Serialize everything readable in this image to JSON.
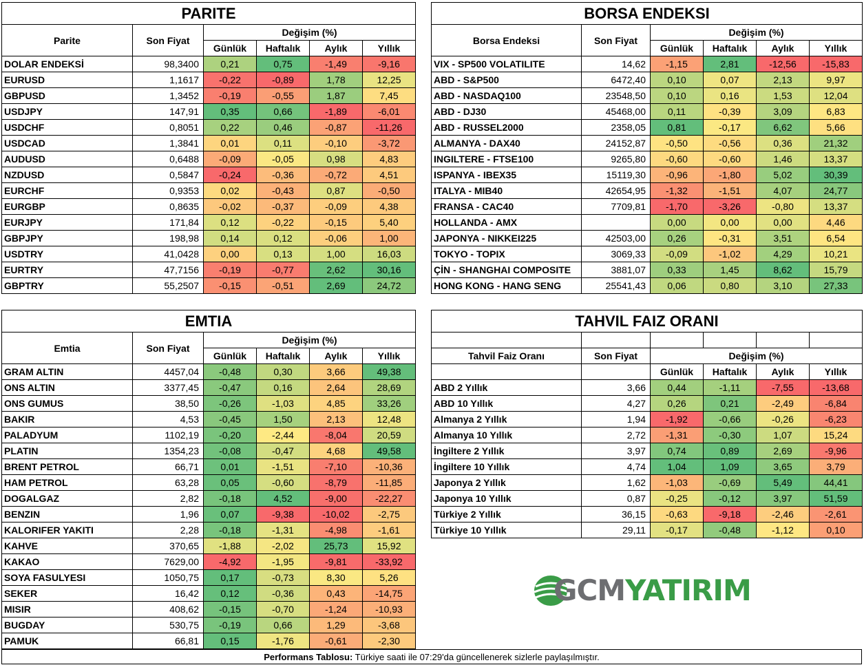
{
  "parite": {
    "title": "PARITE",
    "col_name": "Parite",
    "col_price": "Son Fiyat",
    "col_change": "Değişim (%)",
    "periods": [
      "Günlük",
      "Haftalık",
      "Aylık",
      "Yıllık"
    ],
    "rows": [
      {
        "name": "DOLAR ENDEKSİ",
        "price": "98,3400",
        "vals": [
          "0,21",
          "0,75",
          "-1,49",
          "-9,16"
        ]
      },
      {
        "name": "EURUSD",
        "price": "1,1617",
        "vals": [
          "-0,22",
          "-0,89",
          "1,78",
          "12,25"
        ]
      },
      {
        "name": "GBPUSD",
        "price": "1,3452",
        "vals": [
          "-0,19",
          "-0,55",
          "1,87",
          "7,45"
        ]
      },
      {
        "name": "USDJPY",
        "price": "147,91",
        "vals": [
          "0,35",
          "0,66",
          "-1,89",
          "-6,01"
        ]
      },
      {
        "name": "USDCHF",
        "price": "0,8051",
        "vals": [
          "0,22",
          "0,46",
          "-0,87",
          "-11,26"
        ]
      },
      {
        "name": "USDCAD",
        "price": "1,3841",
        "vals": [
          "0,01",
          "0,11",
          "-0,10",
          "-3,72"
        ]
      },
      {
        "name": "AUDUSD",
        "price": "0,6488",
        "vals": [
          "-0,09",
          "-0,05",
          "0,98",
          "4,83"
        ]
      },
      {
        "name": "NZDUSD",
        "price": "0,5847",
        "vals": [
          "-0,24",
          "-0,36",
          "-0,72",
          "4,51"
        ]
      },
      {
        "name": "EURCHF",
        "price": "0,9353",
        "vals": [
          "0,02",
          "-0,43",
          "0,87",
          "-0,50"
        ]
      },
      {
        "name": "EURGBP",
        "price": "0,8635",
        "vals": [
          "-0,02",
          "-0,37",
          "-0,09",
          "4,38"
        ]
      },
      {
        "name": "EURJPY",
        "price": "171,84",
        "vals": [
          "0,12",
          "-0,22",
          "-0,15",
          "5,40"
        ]
      },
      {
        "name": "GBPJPY",
        "price": "198,98",
        "vals": [
          "0,14",
          "0,12",
          "-0,06",
          "1,00"
        ]
      },
      {
        "name": "USDTRY",
        "price": "41,0428",
        "vals": [
          "0,00",
          "0,13",
          "1,00",
          "16,03"
        ]
      },
      {
        "name": "EURTRY",
        "price": "47,7156",
        "vals": [
          "-0,19",
          "-0,77",
          "2,62",
          "30,16"
        ]
      },
      {
        "name": "GBPTRY",
        "price": "55,2507",
        "vals": [
          "-0,15",
          "-0,51",
          "2,69",
          "24,72"
        ]
      }
    ]
  },
  "borsa": {
    "title": "BORSA ENDEKSI",
    "col_name": "Borsa Endeksi",
    "col_price": "Son Fiyat",
    "col_change": "Değişim (%)",
    "periods": [
      "Günlük",
      "Haftalık",
      "Aylık",
      "Yıllık"
    ],
    "rows": [
      {
        "name": "VIX  - SP500 VOLATILITE",
        "price": "14,62",
        "vals": [
          "-1,15",
          "2,81",
          "-12,56",
          "-15,83"
        ]
      },
      {
        "name": "ABD - S&P500",
        "price": "6472,40",
        "vals": [
          "0,10",
          "0,07",
          "2,13",
          "9,97"
        ]
      },
      {
        "name": "ABD - NASDAQ100",
        "price": "23548,50",
        "vals": [
          "0,10",
          "0,16",
          "1,53",
          "12,04"
        ]
      },
      {
        "name": "ABD - DJ30",
        "price": "45468,00",
        "vals": [
          "0,11",
          "-0,39",
          "3,09",
          "6,83"
        ]
      },
      {
        "name": "ABD - RUSSEL2000",
        "price": "2358,05",
        "vals": [
          "0,81",
          "-0,17",
          "6,62",
          "5,66"
        ]
      },
      {
        "name": "ALMANYA - DAX40",
        "price": "24152,87",
        "vals": [
          "-0,50",
          "-0,56",
          "0,36",
          "21,32"
        ]
      },
      {
        "name": "INGILTERE - FTSE100",
        "price": "9265,80",
        "vals": [
          "-0,60",
          "-0,60",
          "1,46",
          "13,37"
        ]
      },
      {
        "name": "ISPANYA - IBEX35",
        "price": "15119,30",
        "vals": [
          "-0,96",
          "-1,80",
          "5,02",
          "30,39"
        ]
      },
      {
        "name": "ITALYA - MIB40",
        "price": "42654,95",
        "vals": [
          "-1,32",
          "-1,51",
          "4,07",
          "24,77"
        ]
      },
      {
        "name": "FRANSA - CAC40",
        "price": "7709,81",
        "vals": [
          "-1,70",
          "-3,26",
          "-0,80",
          "13,37"
        ]
      },
      {
        "name": "HOLLANDA - AMX",
        "price": "",
        "vals": [
          "0,00",
          "0,00",
          "0,00",
          "4,46"
        ]
      },
      {
        "name": "JAPONYA - NIKKEI225",
        "price": "42503,00",
        "vals": [
          "0,26",
          "-0,31",
          "3,51",
          "6,54"
        ]
      },
      {
        "name": "TOKYO - TOPIX",
        "price": "3069,33",
        "vals": [
          "-0,09",
          "-1,02",
          "4,29",
          "10,21"
        ]
      },
      {
        "name": "ÇİN - SHANGHAI COMPOSITE",
        "price": "3881,07",
        "vals": [
          "0,33",
          "1,45",
          "8,62",
          "15,79"
        ]
      },
      {
        "name": "HONG KONG - HANG SENG",
        "price": "25541,43",
        "vals": [
          "0,06",
          "0,80",
          "3,10",
          "27,33"
        ]
      }
    ]
  },
  "emtia": {
    "title": "EMTIA",
    "col_name": "Emtia",
    "col_price": "Son Fiyat",
    "col_change": "Değişim (%)",
    "periods": [
      "Günlük",
      "Haftalık",
      "Aylık",
      "Yıllık"
    ],
    "rows": [
      {
        "name": "GRAM ALTIN",
        "price": "4457,04",
        "vals": [
          "-0,48",
          "0,30",
          "3,66",
          "49,38"
        ]
      },
      {
        "name": "ONS ALTIN",
        "price": "3377,45",
        "vals": [
          "-0,47",
          "0,16",
          "2,64",
          "28,69"
        ]
      },
      {
        "name": "ONS GUMUS",
        "price": "38,50",
        "vals": [
          "-0,26",
          "-1,03",
          "4,85",
          "33,26"
        ]
      },
      {
        "name": "BAKIR",
        "price": "4,53",
        "vals": [
          "-0,45",
          "1,50",
          "2,13",
          "12,48"
        ]
      },
      {
        "name": "PALADYUM",
        "price": "1102,19",
        "vals": [
          "-0,20",
          "-2,44",
          "-8,04",
          "20,59"
        ]
      },
      {
        "name": "PLATIN",
        "price": "1354,23",
        "vals": [
          "-0,08",
          "-0,47",
          "4,68",
          "49,58"
        ]
      },
      {
        "name": "BRENT PETROL",
        "price": "66,71",
        "vals": [
          "0,01",
          "-1,51",
          "-7,10",
          "-10,36"
        ]
      },
      {
        "name": "HAM PETROL",
        "price": "63,28",
        "vals": [
          "0,05",
          "-0,60",
          "-8,79",
          "-11,85"
        ]
      },
      {
        "name": "DOGALGAZ",
        "price": "2,82",
        "vals": [
          "-0,18",
          "4,52",
          "-9,00",
          "-22,27"
        ]
      },
      {
        "name": "BENZIN",
        "price": "1,96",
        "vals": [
          "0,07",
          "-9,38",
          "-10,02",
          "-2,75"
        ]
      },
      {
        "name": "KALORIFER YAKITI",
        "price": "2,28",
        "vals": [
          "-0,18",
          "-1,31",
          "-4,98",
          "-1,61"
        ]
      },
      {
        "name": "KAHVE",
        "price": "370,65",
        "vals": [
          "-1,88",
          "-2,02",
          "25,73",
          "15,92"
        ]
      },
      {
        "name": "KAKAO",
        "price": "7629,00",
        "vals": [
          "-4,92",
          "-1,95",
          "-9,81",
          "-33,92"
        ]
      },
      {
        "name": "SOYA FASULYESI",
        "price": "1050,75",
        "vals": [
          "0,17",
          "-0,73",
          "8,30",
          "5,26"
        ]
      },
      {
        "name": "SEKER",
        "price": "16,42",
        "vals": [
          "0,12",
          "-0,36",
          "0,43",
          "-14,75"
        ]
      },
      {
        "name": "MISIR",
        "price": "408,62",
        "vals": [
          "-0,15",
          "-0,70",
          "-1,24",
          "-10,93"
        ]
      },
      {
        "name": "BUGDAY",
        "price": "530,75",
        "vals": [
          "-0,19",
          "0,66",
          "1,29",
          "-3,68"
        ]
      },
      {
        "name": "PAMUK",
        "price": "66,81",
        "vals": [
          "0,15",
          "-1,76",
          "-0,61",
          "-2,30"
        ]
      }
    ]
  },
  "tahvil": {
    "title": "TAHVIL FAIZ ORANI",
    "col_name": "Tahvil Faiz Oranı",
    "col_price": "Son Fiyat",
    "col_change": "Değişim (%)",
    "periods": [
      "Günlük",
      "Haftalık",
      "Aylık",
      "Yıllık"
    ],
    "rows": [
      {
        "name": "ABD 2 Yıllık",
        "price": "3,66",
        "vals": [
          "0,44",
          "-1,11",
          "-7,55",
          "-13,68"
        ]
      },
      {
        "name": "ABD 10 Yıllık",
        "price": "4,27",
        "vals": [
          "0,26",
          "0,21",
          "-2,49",
          "-6,84"
        ]
      },
      {
        "name": "Almanya 2 Yıllık",
        "price": "1,94",
        "vals": [
          "-1,92",
          "-0,66",
          "-0,26",
          "-6,23"
        ]
      },
      {
        "name": "Almanya 10 Yıllık",
        "price": "2,72",
        "vals": [
          "-1,31",
          "-0,30",
          "1,07",
          "15,24"
        ]
      },
      {
        "name": "İngiltere 2 Yıllık",
        "price": "3,97",
        "vals": [
          "0,74",
          "0,89",
          "2,69",
          "-9,96"
        ]
      },
      {
        "name": "İngiltere 10 Yıllık",
        "price": "4,74",
        "vals": [
          "1,04",
          "1,09",
          "3,65",
          "3,79"
        ]
      },
      {
        "name": "Japonya 2 Yıllık",
        "price": "1,62",
        "vals": [
          "-1,03",
          "-0,69",
          "5,49",
          "44,41"
        ]
      },
      {
        "name": "Japonya 10 Yıllık",
        "price": "0,87",
        "vals": [
          "-0,25",
          "-0,12",
          "3,97",
          "51,59"
        ]
      },
      {
        "name": "Türkiye 2 Yıllık",
        "price": "36,15",
        "vals": [
          "-0,63",
          "-9,18",
          "-2,46",
          "-2,61"
        ]
      },
      {
        "name": "Türkiye 10 Yıllık",
        "price": "29,11",
        "vals": [
          "-0,17",
          "-0,48",
          "-1,12",
          "0,10"
        ]
      }
    ]
  },
  "logo": {
    "part1": "GCM",
    "part2": "YATIRIM",
    "color_green": "#3a9c47",
    "color_gray": "#777777"
  },
  "footer": {
    "bold": "Performans Tablosu:",
    "text": " Türkiye saati ile 07:29'da güncellenerek sizlerle paylaşılmıştır."
  },
  "colors": {
    "strong_green": "#63be7b",
    "green": "#a9d27f",
    "light_green": "#d7e582",
    "yellow": "#fee983",
    "orange": "#fcb87a",
    "red": "#f8696b"
  }
}
